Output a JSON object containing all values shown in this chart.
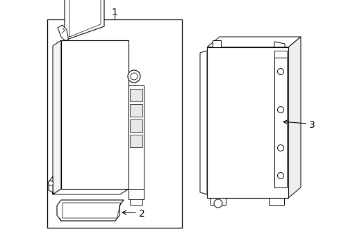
{
  "background_color": "#ffffff",
  "line_color": "#000000",
  "label_1": "1",
  "label_2": "2",
  "label_3": "3",
  "fig_width": 4.89,
  "fig_height": 3.6,
  "dpi": 100
}
